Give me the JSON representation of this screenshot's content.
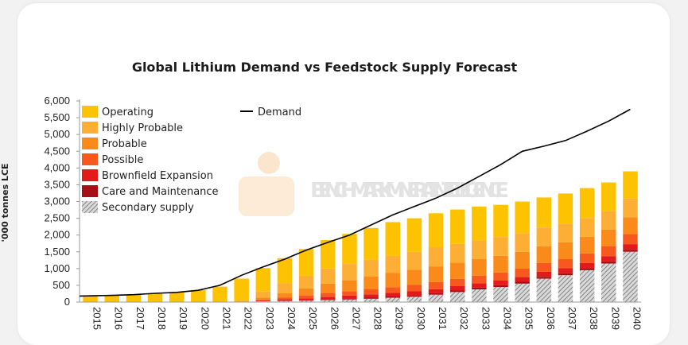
{
  "chart_data": {
    "type": "bar",
    "title": "Global Lithium Demand vs Feedstock Supply Forecast",
    "ylabel": "'000 tonnes LCE",
    "xlabel": "",
    "ylim": [
      0,
      6000
    ],
    "yticks": [
      "0",
      "500",
      "1,000",
      "1,500",
      "2,000",
      "2,500",
      "3,000",
      "3,500",
      "4,000",
      "4,500",
      "5,000",
      "5,500",
      "6,000"
    ],
    "ytick_values": [
      0,
      500,
      1000,
      1500,
      2000,
      2500,
      3000,
      3500,
      4000,
      4500,
      5000,
      5500,
      6000
    ],
    "categories": [
      "2015",
      "2016",
      "2017",
      "2018",
      "2019",
      "2020",
      "2021",
      "2022",
      "2023",
      "2024",
      "2025",
      "2026",
      "2027",
      "2028",
      "2029",
      "2030",
      "2031",
      "2032",
      "2033",
      "2034",
      "2035",
      "2036",
      "2037",
      "2038",
      "2039",
      "2040"
    ],
    "stacked": true,
    "legend_position": "top-left",
    "grid": false,
    "watermark": "BENCHMARK MINERAL INTELLIGENCE",
    "series": [
      {
        "name": "Secondary supply",
        "color": "#bdbdbd",
        "pattern": "hatch",
        "values": [
          0,
          0,
          0,
          0,
          0,
          0,
          0,
          0,
          20,
          30,
          40,
          60,
          80,
          100,
          130,
          160,
          220,
          300,
          380,
          450,
          550,
          700,
          800,
          950,
          1150,
          1500
        ]
      },
      {
        "name": "Care and Maintenance",
        "color": "#a50f15",
        "values": [
          0,
          0,
          0,
          0,
          0,
          0,
          0,
          0,
          5,
          10,
          15,
          20,
          25,
          30,
          35,
          40,
          45,
          45,
          50,
          50,
          55,
          55,
          60,
          60,
          60,
          60
        ]
      },
      {
        "name": "Brownfield Expansion",
        "color": "#e31a1c",
        "values": [
          0,
          0,
          0,
          0,
          0,
          0,
          0,
          0,
          20,
          40,
          60,
          80,
          90,
          100,
          110,
          120,
          120,
          130,
          130,
          140,
          140,
          150,
          150,
          160,
          160,
          170
        ]
      },
      {
        "name": "Possible",
        "color": "#f7581e",
        "values": [
          0,
          0,
          0,
          0,
          0,
          0,
          0,
          0,
          30,
          60,
          90,
          110,
          130,
          150,
          170,
          190,
          210,
          220,
          230,
          240,
          250,
          260,
          270,
          280,
          290,
          300
        ]
      },
      {
        "name": "Probable",
        "color": "#fa8a1a",
        "values": [
          0,
          0,
          0,
          0,
          0,
          0,
          0,
          0,
          60,
          120,
          200,
          280,
          330,
          380,
          420,
          450,
          470,
          480,
          490,
          500,
          500,
          500,
          500,
          500,
          500,
          500
        ]
      },
      {
        "name": "Highly Probable",
        "color": "#fcae35",
        "values": [
          0,
          0,
          0,
          0,
          0,
          0,
          0,
          50,
          180,
          300,
          380,
          450,
          480,
          500,
          520,
          540,
          560,
          560,
          560,
          560,
          560,
          560,
          560,
          560,
          560,
          560
        ]
      },
      {
        "name": "Operating",
        "color": "#fdc300",
        "values": [
          180,
          200,
          230,
          260,
          300,
          360,
          460,
          650,
          700,
          750,
          800,
          850,
          900,
          950,
          1000,
          1000,
          1025,
          1025,
          1010,
          960,
          945,
          895,
          900,
          890,
          850,
          810
        ]
      }
    ],
    "line": {
      "name": "Demand",
      "color": "#000000",
      "values": [
        180,
        200,
        220,
        260,
        290,
        350,
        500,
        800,
        1050,
        1280,
        1550,
        1780,
        2000,
        2300,
        2600,
        2850,
        3100,
        3400,
        3750,
        4100,
        4500,
        4650,
        4820,
        5100,
        5400,
        5750
      ]
    }
  }
}
